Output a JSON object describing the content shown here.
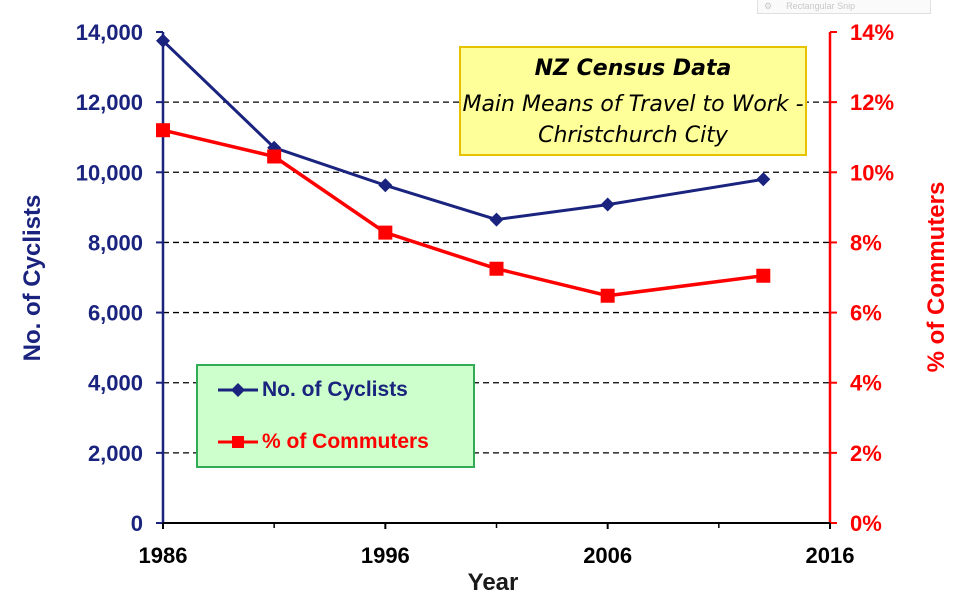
{
  "overlay": {
    "snip_icon": "⚙",
    "snip_label": "Rectangular Snip"
  },
  "colors": {
    "cyclists": "#1a237e",
    "commuters": "#ff0000",
    "title_bg": "#ffff99",
    "legend_bg": "#ccffcc"
  },
  "chart_data": {
    "type": "line",
    "title": "NZ Census Data",
    "subtitle": "Main Means of Travel to Work - Christchurch City",
    "xlabel": "Year",
    "ylabel_left": "No. of Cyclists",
    "ylabel_right": "% of Commuters",
    "xlim": [
      1986,
      2016
    ],
    "ylim_left": [
      0,
      14000
    ],
    "ylim_right": [
      0,
      14
    ],
    "x_ticks": [
      1986,
      1996,
      2006,
      2016
    ],
    "x_tick_labels": [
      "1986",
      "1996",
      "2006",
      "2016"
    ],
    "y_ticks_left": [
      0,
      2000,
      4000,
      6000,
      8000,
      10000,
      12000,
      14000
    ],
    "y_tick_labels_left": [
      "0",
      "2,000",
      "4,000",
      "6,000",
      "8,000",
      "10,000",
      "12,000",
      "14,000"
    ],
    "y_ticks_right": [
      0,
      2,
      4,
      6,
      8,
      10,
      12,
      14
    ],
    "y_tick_labels_right": [
      "0%",
      "2%",
      "4%",
      "6%",
      "8%",
      "10%",
      "12%",
      "14%"
    ],
    "grid": "horizontal dashed",
    "legend_position": "bottom-left",
    "series": [
      {
        "name": "No. of Cyclists",
        "axis": "left",
        "marker": "diamond",
        "x": [
          1986,
          1991,
          1996,
          2001,
          2006,
          2013
        ],
        "values": [
          13750,
          10700,
          9630,
          8650,
          9080,
          9800
        ]
      },
      {
        "name": "% of Commuters",
        "axis": "right",
        "marker": "square",
        "x": [
          1986,
          1991,
          1996,
          2001,
          2006,
          2013
        ],
        "values": [
          11.2,
          10.45,
          8.28,
          7.25,
          6.48,
          7.05
        ]
      }
    ]
  }
}
